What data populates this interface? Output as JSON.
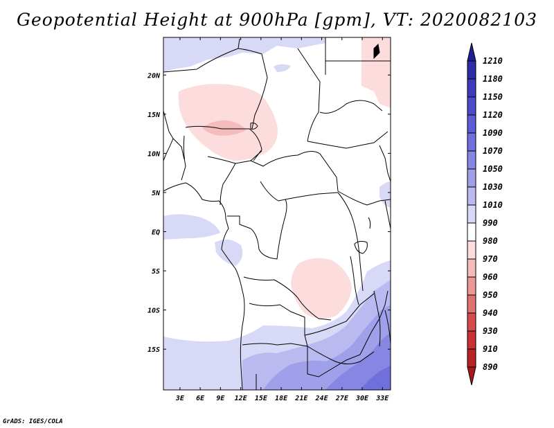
{
  "title": "Geopotential Height at 900hPa [gpm], VT: 2020082103",
  "credit": "GrADS: IGES/COLA",
  "lat_ticks": [
    {
      "value": 20,
      "label": "20N"
    },
    {
      "value": 15,
      "label": "15N"
    },
    {
      "value": 10,
      "label": "10N"
    },
    {
      "value": 5,
      "label": "5N"
    },
    {
      "value": 0,
      "label": "EQ"
    },
    {
      "value": -5,
      "label": "5S"
    },
    {
      "value": -10,
      "label": "10S"
    },
    {
      "value": -15,
      "label": "15S"
    }
  ],
  "lon_ticks": [
    {
      "value": 3,
      "label": "3E"
    },
    {
      "value": 6,
      "label": "6E"
    },
    {
      "value": 9,
      "label": "9E"
    },
    {
      "value": 12,
      "label": "12E"
    },
    {
      "value": 15,
      "label": "15E"
    },
    {
      "value": 18,
      "label": "18E"
    },
    {
      "value": 21,
      "label": "21E"
    },
    {
      "value": 24,
      "label": "24E"
    },
    {
      "value": 27,
      "label": "27E"
    },
    {
      "value": 30,
      "label": "30E"
    },
    {
      "value": 33,
      "label": "33E"
    }
  ],
  "colorbar": {
    "labels": [
      "1210",
      "1180",
      "1150",
      "1120",
      "1090",
      "1070",
      "1050",
      "1030",
      "1010",
      "990",
      "980",
      "970",
      "960",
      "950",
      "940",
      "930",
      "910",
      "890"
    ],
    "colors": [
      "#1f1f96",
      "#2d2da8",
      "#3c3cbc",
      "#4b4bcb",
      "#5c5cd6",
      "#7070dc",
      "#8787e3",
      "#a0a0ea",
      "#babaf0",
      "#d8d8f7",
      "#ffffff",
      "#fcdcdc",
      "#f6bcbc",
      "#ec9696",
      "#e07272",
      "#d44c4c",
      "#c83232",
      "#b82424",
      "#a81818"
    ]
  },
  "legend_colors": {
    "land_outline": "#000000",
    "default_field": "#ffffff"
  }
}
